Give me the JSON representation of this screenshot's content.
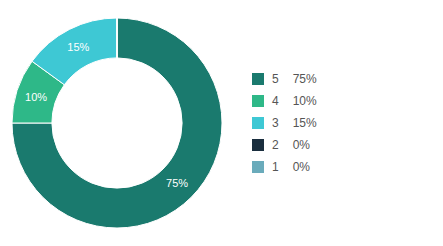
{
  "chart_data": {
    "type": "donut",
    "categories": [
      "5",
      "4",
      "3",
      "2",
      "1"
    ],
    "values": [
      75,
      10,
      15,
      0.0001,
      0.0001
    ],
    "value_labels": [
      "75%",
      "10%",
      "15%",
      "0%",
      "0%"
    ],
    "colors": [
      "#1a7a6e",
      "#2eb888",
      "#3ec8d4",
      "#1a2e3e",
      "#6aabbb"
    ],
    "data_labels": true,
    "legend": "right"
  }
}
